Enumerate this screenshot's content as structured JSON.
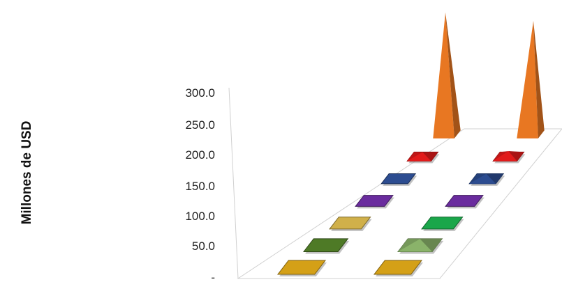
{
  "chart_data": {
    "type": "bar",
    "shape": "3d-pyramid",
    "title": "",
    "xlabel": "",
    "ylabel": "Millones de USD",
    "ylim": [
      0,
      300
    ],
    "yticks": [
      "-",
      "50.0",
      "100.0",
      "150.0",
      "200.0",
      "250.0",
      "300.0"
    ],
    "grid": false,
    "legend": "none",
    "columns": 2,
    "series": [
      {
        "values": [
          0.5,
          0.5
        ],
        "color": "#d4a017"
      },
      {
        "values": [
          1,
          4
        ],
        "color": "#4e7a26"
      },
      {
        "values": [
          0.5,
          1
        ],
        "color": "#d0b04a"
      },
      {
        "values": [
          0.5,
          0.5
        ],
        "color": "#6a2c9e"
      },
      {
        "values": [
          0.5,
          4
        ],
        "color": "#2c4c90"
      },
      {
        "values": [
          4,
          5
        ],
        "color": "#e11b1b"
      },
      {
        "values": [
          300,
          300
        ],
        "color": "#e87722"
      }
    ],
    "series_extra_colors": [
      "#8ab36a",
      "#1aa64a"
    ]
  }
}
